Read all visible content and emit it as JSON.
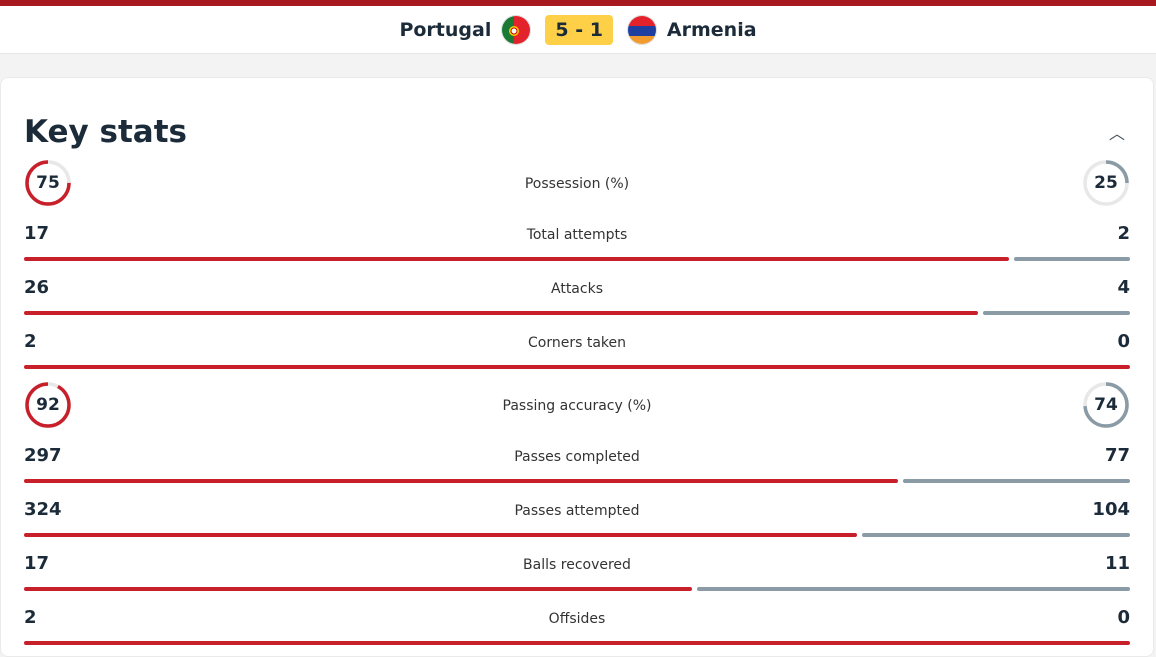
{
  "colors": {
    "home": "#c8202a",
    "away": "#8a9ba5",
    "track": "#e8e8e8",
    "score_bg": "#fdd047",
    "topbar": "#a8191f"
  },
  "match": {
    "home": "Portugal",
    "away": "Armenia",
    "score": "5 - 1"
  },
  "section": {
    "title": "Key stats",
    "collapse_icon": "chevron-up-icon"
  },
  "rings": [
    {
      "label": "Possession (%)",
      "home": 75,
      "away": 25
    },
    {
      "label": "Passing accuracy (%)",
      "home": 92,
      "away": 74
    }
  ],
  "stats": [
    {
      "label": "Total attempts",
      "home": 17,
      "away": 2
    },
    {
      "label": "Attacks",
      "home": 26,
      "away": 4
    },
    {
      "label": "Corners taken",
      "home": 2,
      "away": 0
    },
    {
      "label": "Passes completed",
      "home": 297,
      "away": 77
    },
    {
      "label": "Passes attempted",
      "home": 324,
      "away": 104
    },
    {
      "label": "Balls recovered",
      "home": 17,
      "away": 11
    },
    {
      "label": "Offsides",
      "home": 2,
      "away": 0
    }
  ]
}
